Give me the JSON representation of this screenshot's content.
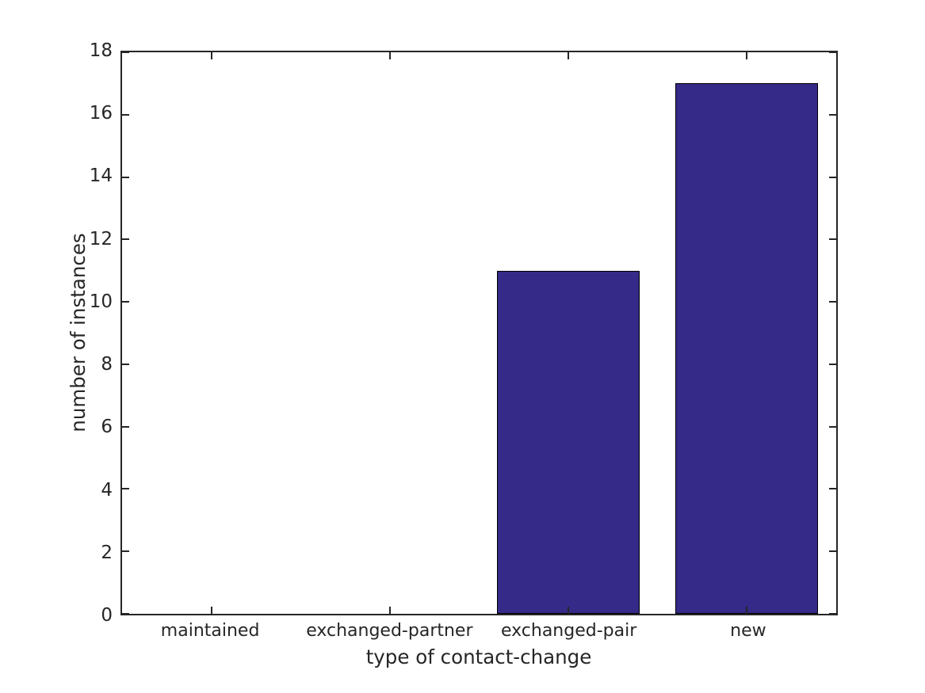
{
  "figure": {
    "background": "#ffffff"
  },
  "chart_data": {
    "type": "bar",
    "categories": [
      "maintained",
      "exchanged-partner",
      "exchanged-pair",
      "new"
    ],
    "values": [
      0,
      0,
      11,
      17
    ],
    "title": "",
    "xlabel": "type of contact-change",
    "ylabel": "number of instances",
    "ylim": [
      0,
      18
    ],
    "yticks": [
      0,
      2,
      4,
      6,
      8,
      10,
      12,
      14,
      16,
      18
    ],
    "bar_width_fraction": 0.8,
    "bar_color": "#352a87",
    "bar_edge_color": "#000000",
    "axis_color": "#262626",
    "text_color": "#262626",
    "grid": false,
    "legend": null,
    "box": true,
    "tick_direction": "in"
  }
}
